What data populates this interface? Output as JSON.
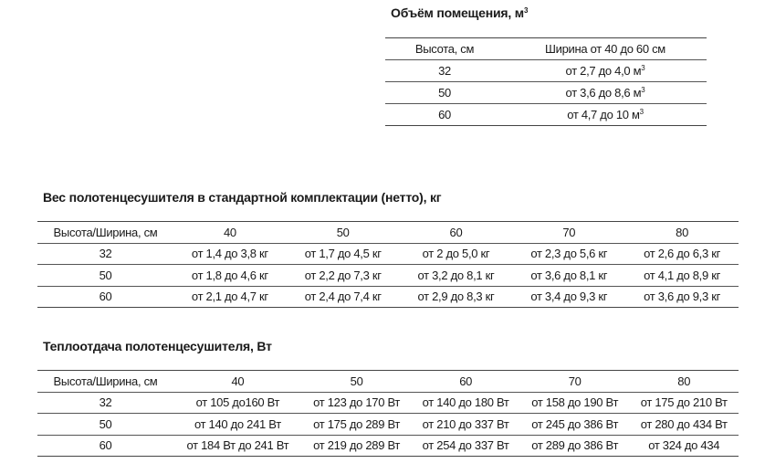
{
  "volume": {
    "title": "Объём помещения, м",
    "title_sup": "3",
    "headers": [
      "Высота, см",
      "Ширина от 40 до 60 см"
    ],
    "rows": [
      {
        "height": "32",
        "value": "от 2,7 до 4,0 м",
        "sup": "3"
      },
      {
        "height": "50",
        "value": "от 3,6 до 8,6 м",
        "sup": "3"
      },
      {
        "height": "60",
        "value": "от 4,7 до 10 м",
        "sup": "3"
      }
    ]
  },
  "weight": {
    "title": "Вес полотенцесушителя в стандартной комплектации (нетто), кг",
    "headers": [
      "Высота/Ширина, см",
      "40",
      "50",
      "60",
      "70",
      "80"
    ],
    "rows": [
      [
        "32",
        "от 1,4 до 3,8 кг",
        "от 1,7 до 4,5 кг",
        "от 2 до 5,0 кг",
        "от 2,3 до 5,6 кг",
        "от 2,6 до 6,3 кг"
      ],
      [
        "50",
        "от 1,8 до 4,6 кг",
        "от 2,2 до 7,3 кг",
        "от 3,2 до 8,1 кг",
        "от 3,6 до 8,1 кг",
        "от 4,1 до 8,9 кг"
      ],
      [
        "60",
        "от 2,1 до 4,7 кг",
        "от 2,4 до 7,4 кг",
        "от 2,9 до 8,3 кг",
        "от 3,4 до 9,3 кг",
        "от 3,6 до 9,3 кг"
      ]
    ]
  },
  "heat": {
    "title": "Теплоотдача полотенцесушителя, Вт",
    "headers": [
      "Высота/Ширина, см",
      "40",
      "50",
      "60",
      "70",
      "80"
    ],
    "rows": [
      [
        "32",
        "от 105 до160 Вт",
        "от 123 до 170 Вт",
        "от 140 до 180 Вт",
        "от 158 до 190 Вт",
        "от 175 до 210 Вт"
      ],
      [
        "50",
        "от 140 до 241 Вт",
        "от 175 до 289 Вт",
        "от 210 до 337 Вт",
        "от 245 до 386 Вт",
        "от 280 до 434 Вт"
      ],
      [
        "60",
        "от 184 Вт до 241 Вт",
        "от 219 до 289 Вт",
        "от 254 до 337 Вт",
        "от 289 до 386 Вт",
        "от 324 до 434"
      ]
    ]
  }
}
